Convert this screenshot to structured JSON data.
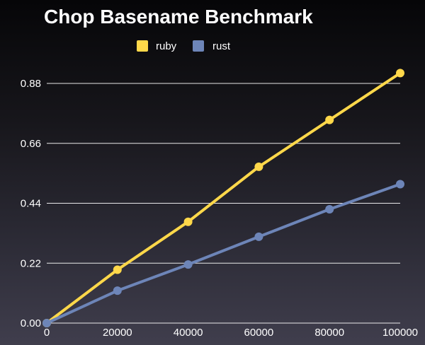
{
  "chart_data": {
    "type": "line",
    "title": "Chop Basename Benchmark",
    "xlabel": "",
    "ylabel": "",
    "x": [
      0,
      20000,
      40000,
      60000,
      80000,
      100000
    ],
    "xlim": [
      0,
      100000
    ],
    "ylim": [
      0,
      0.88
    ],
    "yticks": [
      "0.00",
      "0.22",
      "0.44",
      "0.66",
      "0.88"
    ],
    "xticks": [
      "0",
      "20000",
      "40000",
      "60000",
      "80000",
      "100000"
    ],
    "grid": "horizontal",
    "legend_position": "top-center",
    "series": [
      {
        "name": "ruby",
        "color": "#ffd84a",
        "values": [
          0.0,
          0.196,
          0.372,
          0.574,
          0.746,
          0.918
        ]
      },
      {
        "name": "rust",
        "color": "#6d85b8",
        "values": [
          0.0,
          0.119,
          0.215,
          0.317,
          0.418,
          0.51
        ]
      }
    ]
  }
}
